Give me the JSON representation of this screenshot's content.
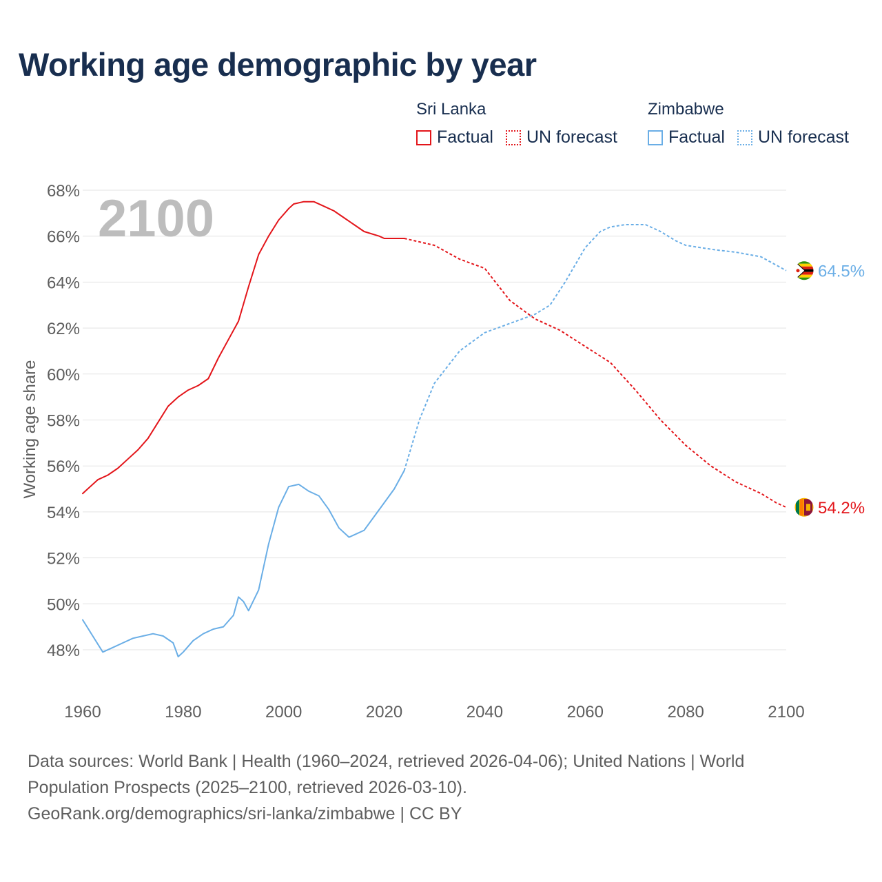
{
  "title": "Working age demographic by year",
  "legend": {
    "groups": [
      {
        "name": "Sri Lanka",
        "factual_label": "Factual",
        "forecast_label": "UN forecast",
        "color": "#e3151a"
      },
      {
        "name": "Zimbabwe",
        "factual_label": "Factual",
        "forecast_label": "UN forecast",
        "color": "#6aaee6"
      }
    ]
  },
  "footer": {
    "line1": "Data sources: World Bank | Health (1960–2024, retrieved 2026-04-06); United Nations | World",
    "line2": "Population Prospects (2025–2100, retrieved 2026-03-10).",
    "line3": "GeoRank.org/demographics/sri-lanka/zimbabwe | CC BY"
  },
  "chart_data": {
    "type": "line",
    "title": "Working age demographic by year",
    "year_label": "2100",
    "xlabel": "",
    "ylabel": "Working age share",
    "xlim": [
      1960,
      2100
    ],
    "ylim": [
      46.5,
      68.5
    ],
    "x_ticks": [
      1960,
      1980,
      2000,
      2020,
      2040,
      2060,
      2080,
      2100
    ],
    "y_ticks": [
      48,
      50,
      52,
      54,
      56,
      58,
      60,
      62,
      64,
      66,
      68
    ],
    "y_tick_labels": [
      "48%",
      "50%",
      "52%",
      "54%",
      "56%",
      "58%",
      "60%",
      "62%",
      "64%",
      "66%",
      "68%"
    ],
    "grid": true,
    "forecast_start_year": 2024,
    "series": [
      {
        "name": "Sri Lanka",
        "color": "#e3151a",
        "end_label": "54.2%",
        "x": [
          1960,
          1963,
          1965,
          1967,
          1969,
          1971,
          1973,
          1975,
          1977,
          1979,
          1981,
          1983,
          1985,
          1987,
          1989,
          1991,
          1993,
          1995,
          1997,
          1999,
          2001,
          2002,
          2004,
          2006,
          2008,
          2010,
          2012,
          2014,
          2016,
          2019,
          2020,
          2024,
          2030,
          2035,
          2040,
          2045,
          2050,
          2055,
          2060,
          2065,
          2070,
          2075,
          2080,
          2085,
          2090,
          2095,
          2098,
          2100
        ],
        "y": [
          54.8,
          55.4,
          55.6,
          55.9,
          56.3,
          56.7,
          57.2,
          57.9,
          58.6,
          59.0,
          59.3,
          59.5,
          59.8,
          60.7,
          61.5,
          62.3,
          63.8,
          65.2,
          66.0,
          66.7,
          67.2,
          67.4,
          67.5,
          67.5,
          67.3,
          67.1,
          66.8,
          66.5,
          66.2,
          66.0,
          65.9,
          65.9,
          65.6,
          65.0,
          64.6,
          63.2,
          62.4,
          61.9,
          61.2,
          60.5,
          59.3,
          58.0,
          56.9,
          56.0,
          55.3,
          54.8,
          54.4,
          54.2
        ]
      },
      {
        "name": "Zimbabwe",
        "color": "#6aaee6",
        "end_label": "64.5%",
        "x": [
          1960,
          1962,
          1964,
          1966,
          1968,
          1970,
          1972,
          1974,
          1976,
          1978,
          1979,
          1980,
          1982,
          1984,
          1986,
          1988,
          1990,
          1991,
          1992,
          1993,
          1995,
          1997,
          1999,
          2001,
          2003,
          2005,
          2007,
          2009,
          2011,
          2013,
          2014,
          2016,
          2018,
          2020,
          2022,
          2024,
          2027,
          2030,
          2035,
          2040,
          2045,
          2050,
          2053,
          2056,
          2060,
          2063,
          2065,
          2068,
          2070,
          2072,
          2075,
          2078,
          2080,
          2083,
          2086,
          2090,
          2095,
          2100
        ],
        "y": [
          49.3,
          48.6,
          47.9,
          48.1,
          48.3,
          48.5,
          48.6,
          48.7,
          48.6,
          48.3,
          47.7,
          47.9,
          48.4,
          48.7,
          48.9,
          49.0,
          49.5,
          50.3,
          50.1,
          49.7,
          50.6,
          52.6,
          54.2,
          55.1,
          55.2,
          54.9,
          54.7,
          54.1,
          53.3,
          52.9,
          53.0,
          53.2,
          53.8,
          54.4,
          55.0,
          55.8,
          58.0,
          59.6,
          61.0,
          61.8,
          62.2,
          62.6,
          63.0,
          64.0,
          65.5,
          66.2,
          66.4,
          66.5,
          66.5,
          66.5,
          66.2,
          65.8,
          65.6,
          65.5,
          65.4,
          65.3,
          65.1,
          64.5
        ]
      }
    ]
  }
}
